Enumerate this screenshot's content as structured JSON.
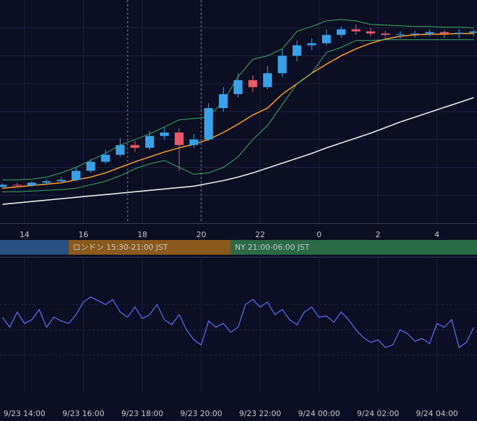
{
  "chart_data": [
    {
      "type": "candlestick",
      "xlim": [
        13.17,
        29.36
      ],
      "ylim": [
        0,
        320
      ],
      "yticks": [
        40,
        80,
        120,
        160,
        200,
        240,
        280
      ],
      "xticks": [
        14,
        16,
        18,
        20,
        22,
        {
          "value": 24,
          "label": "0"
        },
        {
          "value": 26,
          "label": "2"
        },
        {
          "value": 28,
          "label": "4"
        }
      ],
      "vlines": [
        17.5,
        20
      ],
      "up_color": "#3aa0e8",
      "down_color": "#e85a6a",
      "x": [
        13.25,
        13.75,
        14.25,
        14.75,
        15.25,
        15.75,
        16.25,
        16.75,
        17.25,
        17.75,
        18.25,
        18.75,
        19.25,
        19.75,
        20.25,
        20.75,
        21.25,
        21.75,
        22.25,
        22.75,
        23.25,
        23.75,
        24.25,
        24.75,
        25.25,
        25.75,
        26.25,
        26.75,
        27.25,
        27.75,
        28.25,
        28.75,
        29.25
      ],
      "open": [
        52,
        55,
        54,
        58,
        60,
        62,
        75,
        88,
        98,
        112,
        108,
        125,
        130,
        112,
        120,
        165,
        185,
        205,
        195,
        215,
        240,
        255,
        258,
        270,
        278,
        275,
        272,
        270,
        271,
        272,
        274,
        272,
        273
      ],
      "high": [
        57,
        58,
        60,
        63,
        66,
        80,
        92,
        105,
        122,
        118,
        132,
        138,
        136,
        128,
        172,
        195,
        215,
        212,
        225,
        250,
        262,
        265,
        278,
        282,
        285,
        280,
        276,
        275,
        276,
        278,
        277,
        278,
        278
      ],
      "low": [
        50,
        52,
        52,
        56,
        58,
        60,
        72,
        85,
        95,
        102,
        105,
        120,
        75,
        108,
        118,
        160,
        180,
        188,
        192,
        210,
        232,
        248,
        255,
        266,
        270,
        268,
        266,
        265,
        266,
        268,
        266,
        265,
        268
      ],
      "close": [
        55,
        54,
        58,
        60,
        62,
        75,
        88,
        98,
        112,
        108,
        125,
        130,
        112,
        120,
        165,
        185,
        205,
        195,
        215,
        240,
        255,
        258,
        270,
        278,
        275,
        272,
        270,
        271,
        272,
        274,
        272,
        273,
        275
      ],
      "series": [
        {
          "color": "#f39a2b",
          "width": 1.6,
          "values": [
            50,
            52,
            54,
            56,
            58,
            62,
            66,
            72,
            80,
            88,
            95,
            102,
            108,
            113,
            120,
            130,
            142,
            155,
            165,
            185,
            200,
            215,
            228,
            240,
            250,
            258,
            264,
            268,
            270,
            271,
            271,
            272,
            272
          ]
        },
        {
          "color": "#f0f0f0",
          "width": 1.6,
          "values": [
            27,
            29,
            31,
            33,
            35,
            37,
            39,
            41,
            43,
            45,
            47,
            49,
            51,
            53,
            57,
            61,
            66,
            72,
            79,
            86,
            93,
            100,
            108,
            115,
            122,
            129,
            137,
            145,
            152,
            159,
            166,
            173,
            180
          ]
        },
        {
          "color": "#3fae6a",
          "width": 1,
          "values": [
            62,
            62,
            63,
            66,
            72,
            80,
            90,
            100,
            112,
            120,
            128,
            138,
            148,
            150,
            152,
            175,
            210,
            235,
            240,
            250,
            275,
            282,
            290,
            292,
            290,
            285,
            284,
            283,
            282,
            282,
            281,
            281,
            280
          ]
        },
        {
          "color": "#3fae6a",
          "width": 1,
          "values": [
            45,
            45,
            46,
            47,
            48,
            50,
            55,
            60,
            68,
            78,
            85,
            90,
            80,
            70,
            72,
            80,
            95,
            120,
            140,
            170,
            200,
            215,
            245,
            252,
            262,
            262,
            263,
            263,
            263,
            263,
            263,
            263,
            263
          ]
        }
      ],
      "sessions": [
        {
          "start": 13,
          "end": 15.5,
          "color": "#2a5082"
        },
        {
          "name": "ロンドン 15:30-21:00 JST",
          "start": 15.5,
          "end": 21,
          "color": "#8a5a1c"
        },
        {
          "name": "NY 21:00-06:00 JST",
          "start": 21,
          "end": 30,
          "color": "#2a6a45"
        }
      ]
    },
    {
      "type": "line",
      "xlim": [
        13.17,
        29.36
      ],
      "ylim": [
        0,
        100
      ],
      "yticks": [
        30,
        50,
        70
      ],
      "xticks": [
        {
          "value": 14,
          "label": "9/23 14:00"
        },
        {
          "value": 16,
          "label": "9/23 16:00"
        },
        {
          "value": 18,
          "label": "9/23 18:00"
        },
        {
          "value": 20,
          "label": "9/23 20:00"
        },
        {
          "value": 22,
          "label": "9/23 22:00"
        },
        {
          "value": 24,
          "label": "9/24 00:00"
        },
        {
          "value": 26,
          "label": "9/24 02:00"
        },
        {
          "value": 28,
          "label": "9/24 04:00"
        }
      ],
      "x": [
        13.25,
        13.5,
        13.75,
        14,
        14.25,
        14.5,
        14.75,
        15,
        15.25,
        15.5,
        15.75,
        16,
        16.25,
        16.5,
        16.75,
        17,
        17.25,
        17.5,
        17.75,
        18,
        18.25,
        18.5,
        18.75,
        19,
        19.25,
        19.5,
        19.75,
        20,
        20.25,
        20.5,
        20.75,
        21,
        21.25,
        21.5,
        21.75,
        22,
        22.25,
        22.5,
        22.75,
        23,
        23.25,
        23.5,
        23.75,
        24,
        24.25,
        24.5,
        24.75,
        25,
        25.25,
        25.5,
        25.75,
        26,
        26.25,
        26.5,
        26.75,
        27,
        27.25,
        27.5,
        27.75,
        28,
        28.25,
        28.5,
        28.75,
        29,
        29.25
      ],
      "series": [
        {
          "color": "#5a6cf0",
          "values": [
            60,
            52,
            64,
            55,
            58,
            66,
            52,
            60,
            57,
            55,
            62,
            72,
            76,
            73,
            70,
            74,
            64,
            60,
            68,
            59,
            62,
            70,
            58,
            54,
            62,
            50,
            42,
            38,
            57,
            52,
            55,
            48,
            52,
            70,
            74,
            68,
            72,
            62,
            66,
            58,
            54,
            64,
            68,
            60,
            61,
            56,
            64,
            58,
            50,
            44,
            40,
            42,
            36,
            38,
            50,
            47,
            41,
            43,
            39,
            55,
            52,
            58,
            36,
            40,
            52
          ]
        }
      ]
    }
  ]
}
